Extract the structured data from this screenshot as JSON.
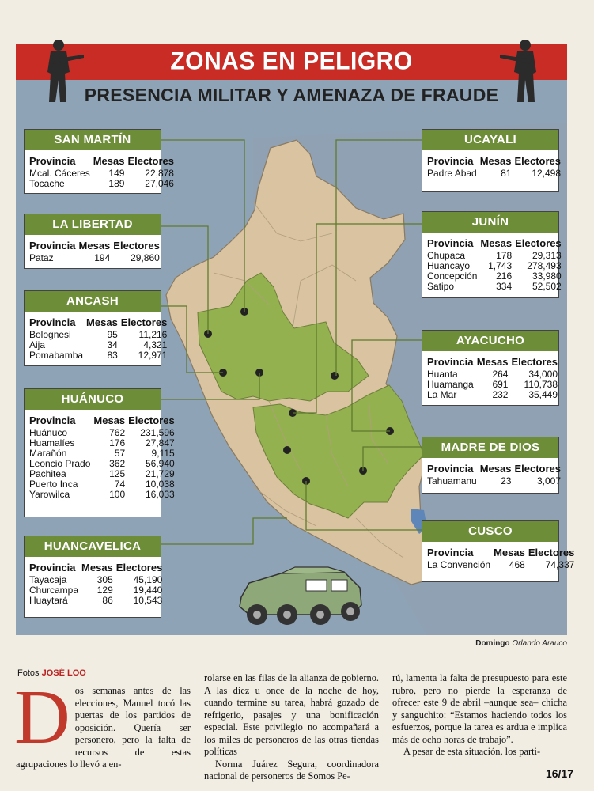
{
  "header": {
    "title": "ZONAS EN PELIGRO",
    "subtitle": "PRESENCIA MILITAR Y AMENAZA DE FRAUDE"
  },
  "table_headers": {
    "provincia": "Provincia",
    "mesas": "Mesas",
    "electores": "Electores"
  },
  "regions": {
    "san_martin": {
      "name": "SAN MARTÍN",
      "rows": [
        [
          "Mcal. Cáceres",
          "149",
          "22,878"
        ],
        [
          "Tocache",
          "189",
          "27,046"
        ]
      ]
    },
    "la_libertad": {
      "name": "LA LIBERTAD",
      "rows": [
        [
          "Pataz",
          "194",
          "29,860"
        ]
      ]
    },
    "ancash": {
      "name": "ANCASH",
      "rows": [
        [
          "Bolognesi",
          "95",
          "11,216"
        ],
        [
          "Aija",
          "34",
          "4,321"
        ],
        [
          "Pomabamba",
          "83",
          "12,971"
        ]
      ]
    },
    "huanuco": {
      "name": "HUÁNUCO",
      "rows": [
        [
          "Huánuco",
          "762",
          "231,596"
        ],
        [
          "Huamalíes",
          "176",
          "27,847"
        ],
        [
          "Marañón",
          "57",
          "9,115"
        ],
        [
          "Leoncio Prado",
          "362",
          "56,940"
        ],
        [
          "Pachitea",
          "125",
          "21,729"
        ],
        [
          "Puerto Inca",
          "74",
          "10,038"
        ],
        [
          "Yarowilca",
          "100",
          "16,033"
        ]
      ]
    },
    "huancavelica": {
      "name": "HUANCAVELICA",
      "rows": [
        [
          "Tayacaja",
          "305",
          "45,190"
        ],
        [
          "Churcampa",
          "129",
          "19,440"
        ],
        [
          "Huaytará",
          "86",
          "10,543"
        ]
      ]
    },
    "ucayali": {
      "name": "UCAYALI",
      "rows": [
        [
          "Padre Abad",
          "81",
          "12,498"
        ]
      ]
    },
    "junin": {
      "name": "JUNÍN",
      "rows": [
        [
          "Chupaca",
          "178",
          "29,313"
        ],
        [
          "Huancayo",
          "1,743",
          "278,493"
        ],
        [
          "Concepción",
          "216",
          "33,980"
        ],
        [
          "Satipo",
          "334",
          "52,502"
        ]
      ]
    },
    "ayacucho": {
      "name": "AYACUCHO",
      "rows": [
        [
          "Huanta",
          "264",
          "34,000"
        ],
        [
          "Huamanga",
          "691",
          "110,738"
        ],
        [
          "La Mar",
          "232",
          "35,449"
        ]
      ]
    },
    "madre_de_dios": {
      "name": "MADRE DE DIOS",
      "rows": [
        [
          "Tahuamanu",
          "23",
          "3,007"
        ]
      ]
    },
    "cusco": {
      "name": "CUSCO",
      "rows": [
        [
          "La Convención",
          "468",
          "74,337"
        ]
      ]
    }
  },
  "credit": {
    "paper": "Domingo",
    "author": "Orlando Arauco"
  },
  "fotos": {
    "label": "Fotos",
    "name": "JOSÉ LOO"
  },
  "article": {
    "dropcap": "D",
    "col1": "os semanas antes de las elecciones, Manuel tocó las puertas de los partidos de oposición. Quería ser personero, pero la falta de recursos de estas agrupaciones lo llevó a en-",
    "col2": "rolarse en las filas de la alianza de gobierno. A las diez u once de la noche de hoy, cuando termine su tarea, habrá gozado de refrigerio, pasajes y una bonificación especial. Este privilegio no acompañará a los miles de personeros de las otras tiendas políticas",
    "col2b": "Norma Juárez Segura, coordinadora nacional de personeros de Somos Pe-",
    "col3": "rú, lamenta la falta de presupuesto para este rubro, pero no pierde la esperanza de ofrecer este 9 de abril –aunque sea– chicha y sanguchito: “Estamos haciendo todos los esfuerzos, porque la tarea es ardua e implica más de ocho horas de trabajo”.",
    "col3b": "A pesar de esta situación, los parti-"
  },
  "page": {
    "number": "16/17"
  },
  "colors": {
    "band": "#c92b25",
    "header_green": "#6e8d39",
    "map_green": "#94b150",
    "map_land": "#d9c3a0",
    "ocean": "#8fa3b6"
  }
}
